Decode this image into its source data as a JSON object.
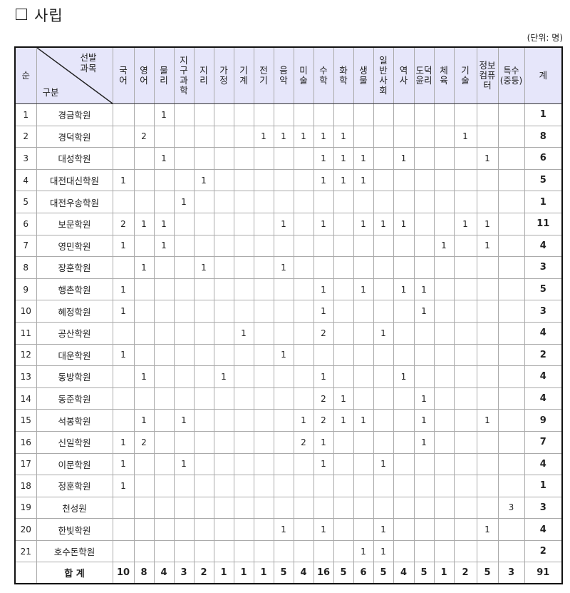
{
  "title": "사립",
  "unit": "(단위: 명)",
  "header": {
    "no": "순",
    "corner_top": "선발\n과목",
    "corner_top_1": "선발",
    "corner_top_2": "과목",
    "corner_bottom": "구분",
    "subjects": [
      "국어",
      "영어",
      "물리",
      "지구과학",
      "지리",
      "가정",
      "기계",
      "전기",
      "음악",
      "미술",
      "수학",
      "화학",
      "생물",
      "일반사회",
      "역사",
      "도덕윤리",
      "체육",
      "기술",
      "정보컴퓨터",
      "특수(중등)"
    ],
    "subject_lines": [
      [
        "국",
        "어"
      ],
      [
        "영",
        "어"
      ],
      [
        "물",
        "리"
      ],
      [
        "지",
        "구",
        "과",
        "학"
      ],
      [
        "지",
        "리"
      ],
      [
        "가",
        "정"
      ],
      [
        "기",
        "계"
      ],
      [
        "전",
        "기"
      ],
      [
        "음",
        "악"
      ],
      [
        "미",
        "술"
      ],
      [
        "수",
        "학"
      ],
      [
        "화",
        "학"
      ],
      [
        "생",
        "물"
      ],
      [
        "일",
        "반",
        "사",
        "회"
      ],
      [
        "역",
        "사"
      ],
      [
        "도덕",
        "윤리"
      ],
      [
        "체",
        "육"
      ],
      [
        "기",
        "술"
      ],
      [
        "정보",
        "컴퓨",
        "터"
      ],
      [
        "특수",
        "(중등)"
      ]
    ],
    "total": "계"
  },
  "rows": [
    {
      "no": "1",
      "name": "경금학원",
      "values": [
        "",
        "",
        "1",
        "",
        "",
        "",
        "",
        "",
        "",
        "",
        "",
        "",
        "",
        "",
        "",
        "",
        "",
        "",
        "",
        ""
      ],
      "total": "1"
    },
    {
      "no": "2",
      "name": "경덕학원",
      "values": [
        "",
        "2",
        "",
        "",
        "",
        "",
        "",
        "1",
        "1",
        "1",
        "1",
        "1",
        "",
        "",
        "",
        "",
        "",
        "1",
        "",
        ""
      ],
      "total": "8"
    },
    {
      "no": "3",
      "name": "대성학원",
      "values": [
        "",
        "",
        "1",
        "",
        "",
        "",
        "",
        "",
        "",
        "",
        "1",
        "1",
        "1",
        "",
        "1",
        "",
        "",
        "",
        "1",
        ""
      ],
      "total": "6"
    },
    {
      "no": "4",
      "name": "대전대신학원",
      "values": [
        "1",
        "",
        "",
        "",
        "1",
        "",
        "",
        "",
        "",
        "",
        "1",
        "1",
        "1",
        "",
        "",
        "",
        "",
        "",
        "",
        ""
      ],
      "total": "5"
    },
    {
      "no": "5",
      "name": "대전우송학원",
      "values": [
        "",
        "",
        "",
        "1",
        "",
        "",
        "",
        "",
        "",
        "",
        "",
        "",
        "",
        "",
        "",
        "",
        "",
        "",
        "",
        ""
      ],
      "total": "1"
    },
    {
      "no": "6",
      "name": "보문학원",
      "values": [
        "2",
        "1",
        "1",
        "",
        "",
        "",
        "",
        "",
        "1",
        "",
        "1",
        "",
        "1",
        "1",
        "1",
        "",
        "",
        "1",
        "1",
        ""
      ],
      "total": "11"
    },
    {
      "no": "7",
      "name": "영민학원",
      "values": [
        "1",
        "",
        "1",
        "",
        "",
        "",
        "",
        "",
        "",
        "",
        "",
        "",
        "",
        "",
        "",
        "",
        "1",
        "",
        "1",
        ""
      ],
      "total": "4"
    },
    {
      "no": "8",
      "name": "장훈학원",
      "values": [
        "",
        "1",
        "",
        "",
        "1",
        "",
        "",
        "",
        "1",
        "",
        "",
        "",
        "",
        "",
        "",
        "",
        "",
        "",
        "",
        ""
      ],
      "total": "3"
    },
    {
      "no": "9",
      "name": "행촌학원",
      "values": [
        "1",
        "",
        "",
        "",
        "",
        "",
        "",
        "",
        "",
        "",
        "1",
        "",
        "1",
        "",
        "1",
        "1",
        "",
        "",
        "",
        ""
      ],
      "total": "5"
    },
    {
      "no": "10",
      "name": "혜정학원",
      "values": [
        "1",
        "",
        "",
        "",
        "",
        "",
        "",
        "",
        "",
        "",
        "1",
        "",
        "",
        "",
        "",
        "1",
        "",
        "",
        "",
        ""
      ],
      "total": "3"
    },
    {
      "no": "11",
      "name": "공산학원",
      "values": [
        "",
        "",
        "",
        "",
        "",
        "",
        "1",
        "",
        "",
        "",
        "2",
        "",
        "",
        "1",
        "",
        "",
        "",
        "",
        "",
        ""
      ],
      "total": "4"
    },
    {
      "no": "12",
      "name": "대운학원",
      "values": [
        "1",
        "",
        "",
        "",
        "",
        "",
        "",
        "",
        "1",
        "",
        "",
        "",
        "",
        "",
        "",
        "",
        "",
        "",
        "",
        ""
      ],
      "total": "2"
    },
    {
      "no": "13",
      "name": "동방학원",
      "values": [
        "",
        "1",
        "",
        "",
        "",
        "1",
        "",
        "",
        "",
        "",
        "1",
        "",
        "",
        "",
        "1",
        "",
        "",
        "",
        "",
        ""
      ],
      "total": "4"
    },
    {
      "no": "14",
      "name": "동준학원",
      "values": [
        "",
        "",
        "",
        "",
        "",
        "",
        "",
        "",
        "",
        "",
        "2",
        "1",
        "",
        "",
        "",
        "1",
        "",
        "",
        "",
        ""
      ],
      "total": "4"
    },
    {
      "no": "15",
      "name": "석봉학원",
      "values": [
        "",
        "1",
        "",
        "1",
        "",
        "",
        "",
        "",
        "",
        "1",
        "2",
        "1",
        "1",
        "",
        "",
        "1",
        "",
        "",
        "1",
        ""
      ],
      "total": "9"
    },
    {
      "no": "16",
      "name": "신일학원",
      "values": [
        "1",
        "2",
        "",
        "",
        "",
        "",
        "",
        "",
        "",
        "2",
        "1",
        "",
        "",
        "",
        "",
        "1",
        "",
        "",
        "",
        ""
      ],
      "total": "7"
    },
    {
      "no": "17",
      "name": "이문학원",
      "values": [
        "1",
        "",
        "",
        "1",
        "",
        "",
        "",
        "",
        "",
        "",
        "1",
        "",
        "",
        "1",
        "",
        "",
        "",
        "",
        "",
        ""
      ],
      "total": "4"
    },
    {
      "no": "18",
      "name": "정훈학원",
      "values": [
        "1",
        "",
        "",
        "",
        "",
        "",
        "",
        "",
        "",
        "",
        "",
        "",
        "",
        "",
        "",
        "",
        "",
        "",
        "",
        ""
      ],
      "total": "1"
    },
    {
      "no": "19",
      "name": "천성원",
      "values": [
        "",
        "",
        "",
        "",
        "",
        "",
        "",
        "",
        "",
        "",
        "",
        "",
        "",
        "",
        "",
        "",
        "",
        "",
        "",
        "3"
      ],
      "total": "3"
    },
    {
      "no": "20",
      "name": "한빛학원",
      "values": [
        "",
        "",
        "",
        "",
        "",
        "",
        "",
        "",
        "1",
        "",
        "1",
        "",
        "",
        "1",
        "",
        "",
        "",
        "",
        "1",
        ""
      ],
      "total": "4"
    },
    {
      "no": "21",
      "name": "호수돈학원",
      "values": [
        "",
        "",
        "",
        "",
        "",
        "",
        "",
        "",
        "",
        "",
        "",
        "",
        "1",
        "1",
        "",
        "",
        "",
        "",
        "",
        ""
      ],
      "total": "2"
    }
  ],
  "sum_row": {
    "label": "합 계",
    "values": [
      "10",
      "8",
      "4",
      "3",
      "2",
      "1",
      "1",
      "1",
      "5",
      "4",
      "16",
      "5",
      "6",
      "5",
      "4",
      "5",
      "1",
      "2",
      "5",
      "3"
    ],
    "total": "91"
  }
}
